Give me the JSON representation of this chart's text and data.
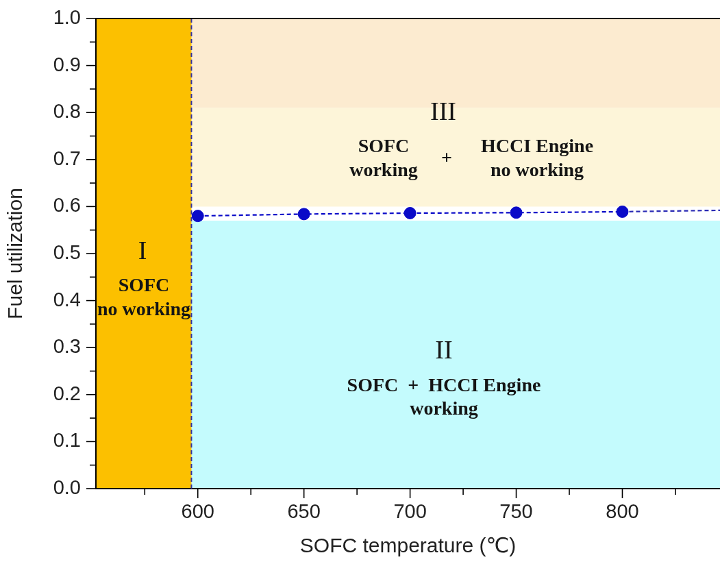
{
  "chart_data": {
    "type": "line",
    "xlabel": "SOFC temperature (℃)",
    "ylabel": "Fuel utilization",
    "xlim": [
      552,
      846
    ],
    "xticks": [
      {
        "value": 575,
        "label": null
      },
      600,
      {
        "value": 625,
        "label": null
      },
      650,
      {
        "value": 675,
        "label": null
      },
      700,
      {
        "value": 725,
        "label": null
      },
      750,
      {
        "value": 775,
        "label": null
      },
      800,
      {
        "value": 825,
        "label": null
      }
    ],
    "ylim": [
      0,
      1
    ],
    "yticks": [
      {
        "value": 0,
        "label": "0.0"
      },
      {
        "value": 0.05,
        "label": null
      },
      0.1,
      {
        "value": 0.15,
        "label": null
      },
      0.2,
      {
        "value": 0.25,
        "label": null
      },
      0.3,
      {
        "value": 0.35,
        "label": null
      },
      0.4,
      {
        "value": 0.45,
        "label": null
      },
      0.5,
      {
        "value": 0.55,
        "label": null
      },
      0.6,
      {
        "value": 0.65,
        "label": null
      },
      0.7,
      {
        "value": 0.75,
        "label": null
      },
      0.8,
      {
        "value": 0.85,
        "label": null
      },
      0.9,
      {
        "value": 0.95,
        "label": null
      },
      {
        "value": 1,
        "label": "1.0"
      }
    ],
    "marker": "circle",
    "line_style": "dashed",
    "series": [
      {
        "color": "#0a0ac8",
        "x": [
          600,
          650,
          700,
          750,
          800
        ],
        "values": [
          0.58,
          0.584,
          0.586,
          0.587,
          0.589
        ]
      },
      {
        "color": "#2a2ab4",
        "marker": "none",
        "x": [
          800,
          846
        ],
        "values": [
          0.589,
          0.592
        ]
      }
    ],
    "bands": [
      {
        "axis": "y",
        "from": 0,
        "to": 0.57,
        "color": "#c4fbfd"
      },
      {
        "axis": "y",
        "from": 0.6,
        "to": 0.81,
        "color": "#fdf5d9"
      },
      {
        "axis": "y",
        "from": 0.81,
        "to": 1,
        "color": "#fcebd0"
      },
      {
        "axis": "x",
        "from": 552,
        "to": 597,
        "color": "#fcc000"
      }
    ],
    "ref_lines": [
      {
        "axis": "x",
        "value": 597,
        "color": "#33339c",
        "line_style": "dashed"
      }
    ],
    "annotations": [
      "I",
      "SOFC",
      "no working",
      "III",
      "SOFC",
      "working",
      "+",
      "HCCI Engine",
      "no working",
      "II",
      "SOFC  +  HCCI Engine",
      "working"
    ]
  }
}
